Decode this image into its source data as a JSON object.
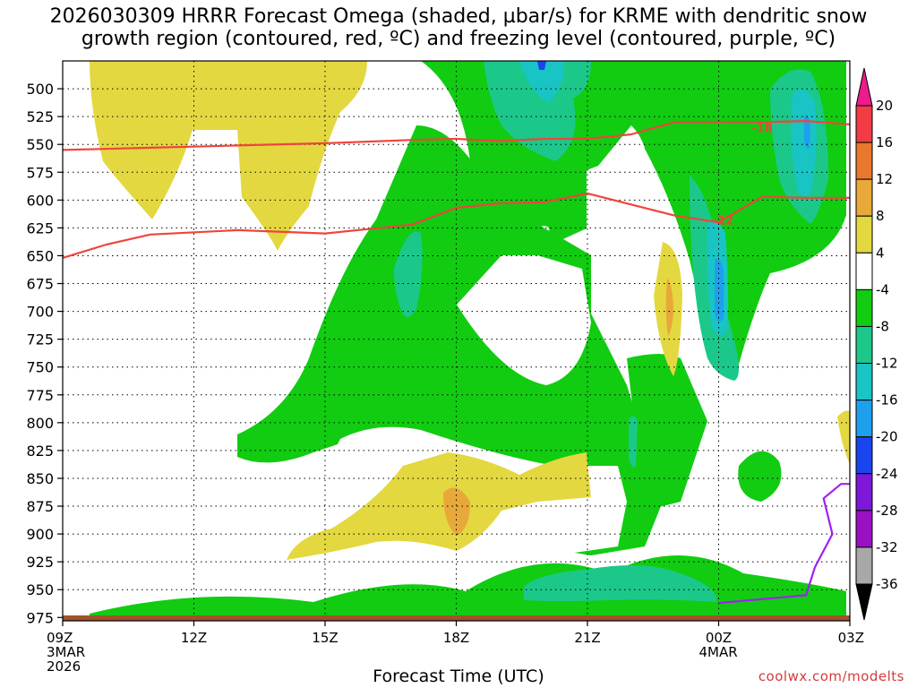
{
  "title_line1": "2026030309 HRRR Forecast Omega (shaded, µbar/s) for KRME with dendritic snow",
  "title_line2": "growth region (contoured, red, ºC) and freezing level (contoured, purple, ºC)",
  "chart_data": {
    "type": "heatmap",
    "y_axis": {
      "label": "",
      "scale": "pressure (inverted)",
      "ylim": [
        975,
        475
      ],
      "ticks": [
        500,
        525,
        550,
        575,
        600,
        625,
        650,
        675,
        700,
        725,
        750,
        775,
        800,
        825,
        850,
        875,
        900,
        925,
        950,
        975
      ]
    },
    "x_axis": {
      "label": "Forecast Time (UTC)",
      "xlim": [
        "2026-03-03 09Z",
        "2026-03-04 03Z"
      ],
      "ticks": [
        {
          "hours": 0,
          "label": "09Z",
          "sub": [
            "3MAR",
            "2026"
          ]
        },
        {
          "hours": 3,
          "label": "12Z",
          "sub": []
        },
        {
          "hours": 6,
          "label": "15Z",
          "sub": []
        },
        {
          "hours": 9,
          "label": "18Z",
          "sub": []
        },
        {
          "hours": 12,
          "label": "21Z",
          "sub": []
        },
        {
          "hours": 15,
          "label": "00Z",
          "sub": [
            "4MAR"
          ]
        },
        {
          "hours": 18,
          "label": "03Z",
          "sub": []
        }
      ]
    },
    "grid": true,
    "colorbar": {
      "labels": [
        20,
        16,
        12,
        8,
        4,
        -4,
        -8,
        -12,
        -16,
        -20,
        -24,
        -28,
        -32,
        -36
      ],
      "colors": [
        "#f23b44",
        "#e8782c",
        "#e8a83a",
        "#e3d840",
        "#ffffff",
        "#11cc11",
        "#1bc88a",
        "#18c4c4",
        "#1ea0ee",
        "#1a44ee",
        "#7e18d8",
        "#9a10c4",
        "#a8a8a8"
      ],
      "ends": {
        "top": "#ec1c8c",
        "bottom": "#000000"
      }
    },
    "contours": [
      {
        "color": "#f0443c",
        "label": "-18",
        "label_at": [
          16.0,
          535
        ],
        "points": [
          [
            0,
            555
          ],
          [
            2,
            553
          ],
          [
            4,
            551
          ],
          [
            6,
            549
          ],
          [
            8,
            546
          ],
          [
            9,
            545
          ],
          [
            10,
            547
          ],
          [
            11,
            545
          ],
          [
            12,
            545
          ],
          [
            13,
            541
          ],
          [
            14,
            530
          ],
          [
            15,
            530
          ],
          [
            16,
            530
          ],
          [
            17,
            529
          ],
          [
            18,
            532
          ]
        ]
      },
      {
        "color": "#f0443c",
        "label": "-12",
        "label_at": [
          15.1,
          618
        ],
        "points": [
          [
            0,
            652
          ],
          [
            1,
            640
          ],
          [
            2,
            631
          ],
          [
            4,
            627
          ],
          [
            6,
            630
          ],
          [
            8,
            622
          ],
          [
            9,
            607
          ],
          [
            10,
            603
          ],
          [
            11,
            602
          ],
          [
            12,
            594
          ],
          [
            14,
            614
          ],
          [
            15,
            620
          ],
          [
            16,
            597
          ],
          [
            17,
            598
          ],
          [
            18,
            598
          ]
        ]
      },
      {
        "color": "#a020f0",
        "label": "",
        "label_at": null,
        "points": [
          [
            15,
            962
          ],
          [
            17,
            955
          ],
          [
            17.2,
            930
          ],
          [
            17.6,
            900
          ],
          [
            17.4,
            868
          ],
          [
            17.8,
            855
          ],
          [
            18,
            855
          ]
        ]
      }
    ],
    "terrain": {
      "color": "#a0522d",
      "top_hpa": 970
    }
  },
  "x_axis_title": "Forecast Time (UTC)",
  "credit": "coolwx.com/modelts"
}
